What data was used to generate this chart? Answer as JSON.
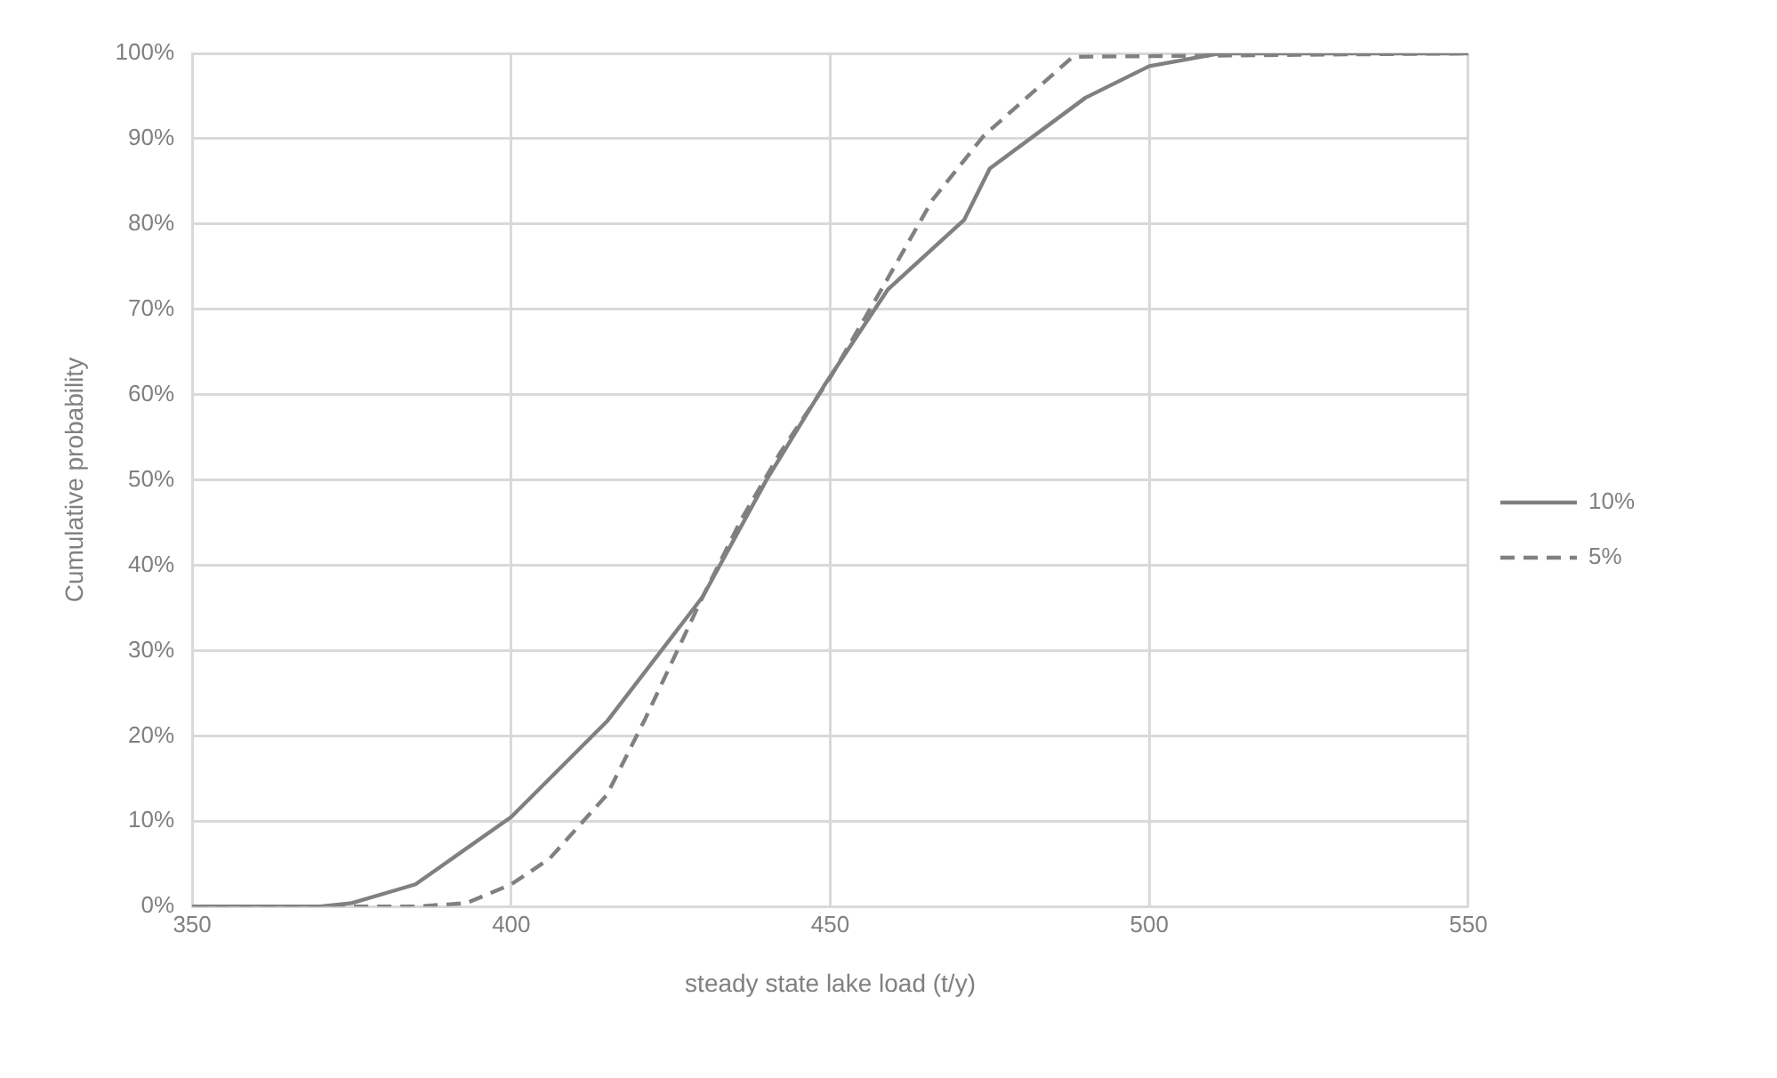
{
  "chart_data": {
    "type": "line",
    "xlabel": "steady state lake load (t/y)",
    "ylabel": "Cumulative probability",
    "xlim": [
      350,
      550
    ],
    "xticks": [
      350,
      400,
      450,
      500,
      550
    ],
    "ylim": [
      0,
      100
    ],
    "yticks": [
      {
        "value": 0,
        "label": "0%"
      },
      {
        "value": 10,
        "label": "10%"
      },
      {
        "value": 20,
        "label": "20%"
      },
      {
        "value": 30,
        "label": "30%"
      },
      {
        "value": 40,
        "label": "40%"
      },
      {
        "value": 50,
        "label": "50%"
      },
      {
        "value": 60,
        "label": "60%"
      },
      {
        "value": 70,
        "label": "70%"
      },
      {
        "value": 80,
        "label": "80%"
      },
      {
        "value": 90,
        "label": "90%"
      },
      {
        "value": 100,
        "label": "100%"
      }
    ],
    "grid": true,
    "legend": "right",
    "marker": "none",
    "series": [
      {
        "name": "10%",
        "color": "#808080",
        "line_style": "solid",
        "x": [
          350,
          370,
          375,
          385,
          400,
          415,
          430,
          440,
          449,
          459,
          471,
          475,
          490,
          500,
          511,
          550
        ],
        "values": [
          0,
          0,
          0.4,
          2.6,
          10.5,
          21.7,
          36.3,
          50,
          61,
          72.3,
          80.5,
          86.5,
          94.8,
          98.5,
          100,
          100
        ]
      },
      {
        "name": "5%",
        "color": "#808080",
        "line_style": "dashed",
        "x": [
          350,
          385,
          393,
          400,
          406,
          415,
          421,
          430,
          436,
          442,
          450,
          458,
          466,
          474,
          488,
          550
        ],
        "values": [
          0,
          0,
          0.4,
          2.6,
          5.6,
          13.1,
          22,
          36.3,
          45.3,
          53,
          62,
          72.3,
          82.8,
          90.3,
          99.6,
          100
        ]
      }
    ]
  }
}
